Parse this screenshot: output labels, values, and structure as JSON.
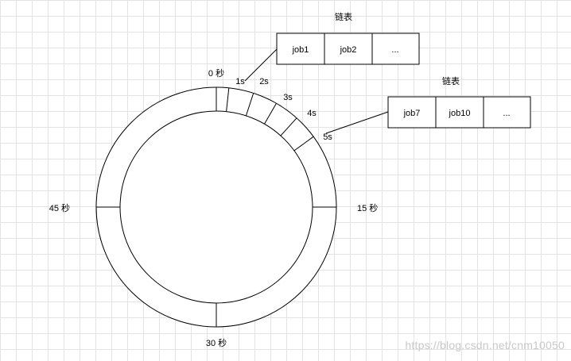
{
  "wheel": {
    "quarter_labels": [
      "0 秒",
      "15 秒",
      "30 秒",
      "45 秒"
    ],
    "slot_labels": [
      "1s",
      "2s",
      "3s",
      "4s",
      "5s"
    ]
  },
  "lists": [
    {
      "title": "链表",
      "cells": [
        "job1",
        "job2",
        "..."
      ]
    },
    {
      "title": "链表",
      "cells": [
        "job7",
        "job10",
        "..."
      ]
    }
  ],
  "watermark": "https://blog.csdn.net/cnm10050"
}
